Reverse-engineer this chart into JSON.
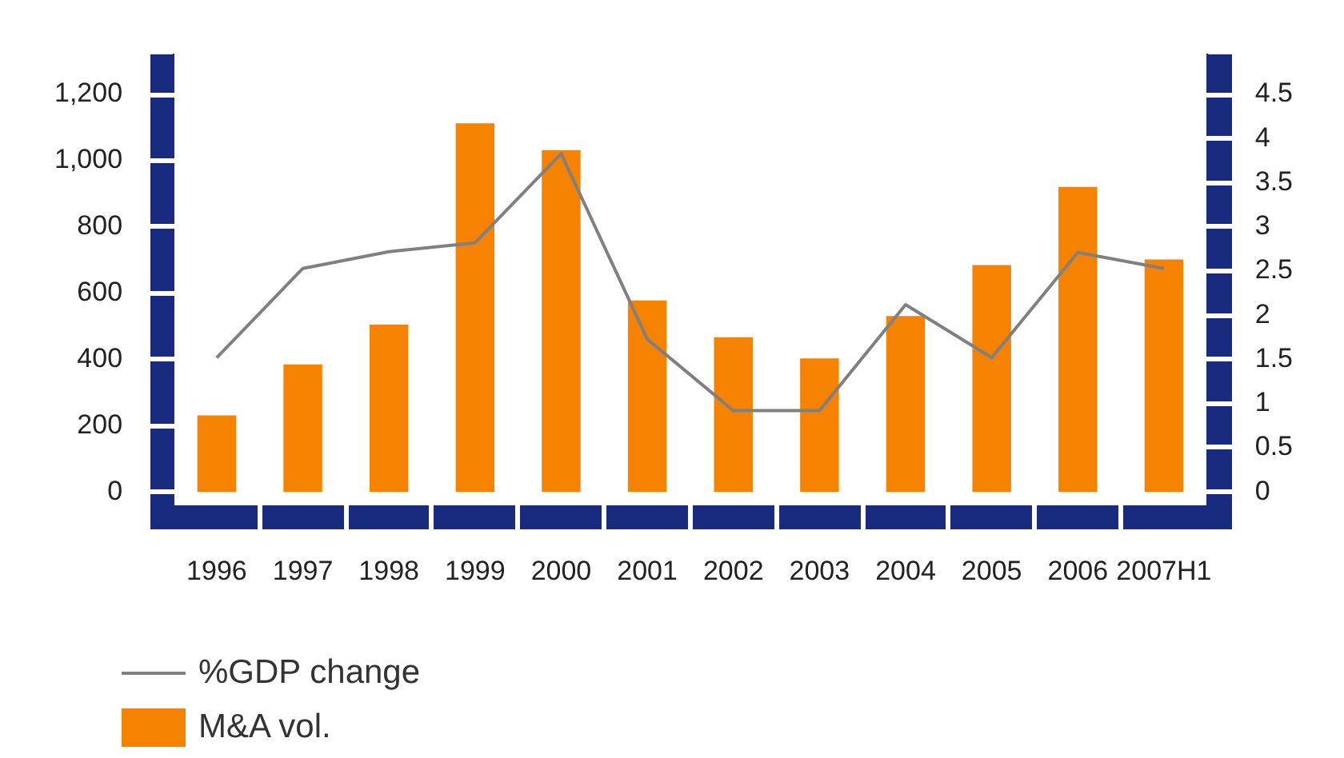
{
  "chart_data": {
    "type": "bar",
    "categories": [
      "1996",
      "1997",
      "1998",
      "1999",
      "2000",
      "2001",
      "2002",
      "2003",
      "2004",
      "2005",
      "2006",
      "2007H1"
    ],
    "series": [
      {
        "name": "%GDP change",
        "type": "line",
        "axis": "y2",
        "color": "#808080",
        "values": [
          1.52,
          2.53,
          2.72,
          2.82,
          3.83,
          1.73,
          0.92,
          0.92,
          2.12,
          1.52,
          2.71,
          2.53
        ]
      },
      {
        "name": "M&A vol.",
        "color": "#f58200",
        "values": [
          231,
          385,
          505,
          1113,
          1032,
          578,
          467,
          403,
          531,
          685,
          921,
          702
        ]
      }
    ],
    "ylim": [
      0,
      1320
    ],
    "yticks": [
      0,
      200,
      400,
      600,
      800,
      {
        "value": 1000,
        "label": "1,000"
      },
      {
        "value": 1200,
        "label": "1,200"
      }
    ],
    "y2lim": [
      0,
      4.95
    ],
    "y2ticks": [
      0,
      0.5,
      1,
      1.5,
      2,
      2.5,
      3,
      3.5,
      4,
      4.5
    ],
    "grid": false,
    "legend": "bottom left",
    "marker": "none",
    "line_style": "solid"
  }
}
